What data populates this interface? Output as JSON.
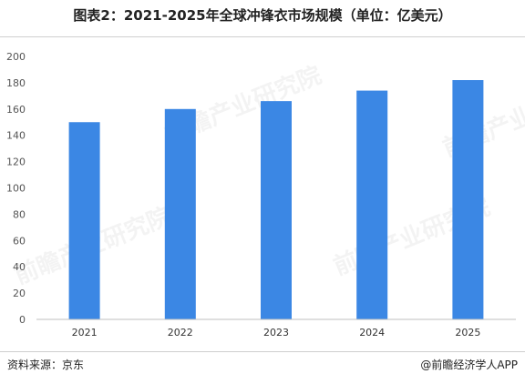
{
  "title": "图表2：2021-2025年全球冲锋衣市场规模（单位：亿美元）",
  "source": "资料来源：京东",
  "credit": "@前瞻经济学人APP",
  "watermark": "前瞻产业研究院",
  "colors": {
    "bar": "#3b87e4",
    "axis": "#bfbfbf",
    "tick_text": "#555555"
  },
  "chart_data": {
    "type": "bar",
    "categories": [
      "2021",
      "2022",
      "2023",
      "2024",
      "2025"
    ],
    "values": [
      150,
      160,
      166,
      174,
      182
    ],
    "title": "图表2：2021-2025年全球冲锋衣市场规模（单位：亿美元）",
    "xlabel": "",
    "ylabel": "",
    "ylim": [
      0,
      200
    ],
    "yticks": [
      0,
      20,
      40,
      60,
      80,
      100,
      120,
      140,
      160,
      180,
      200
    ],
    "grid": false,
    "legend": "none"
  }
}
